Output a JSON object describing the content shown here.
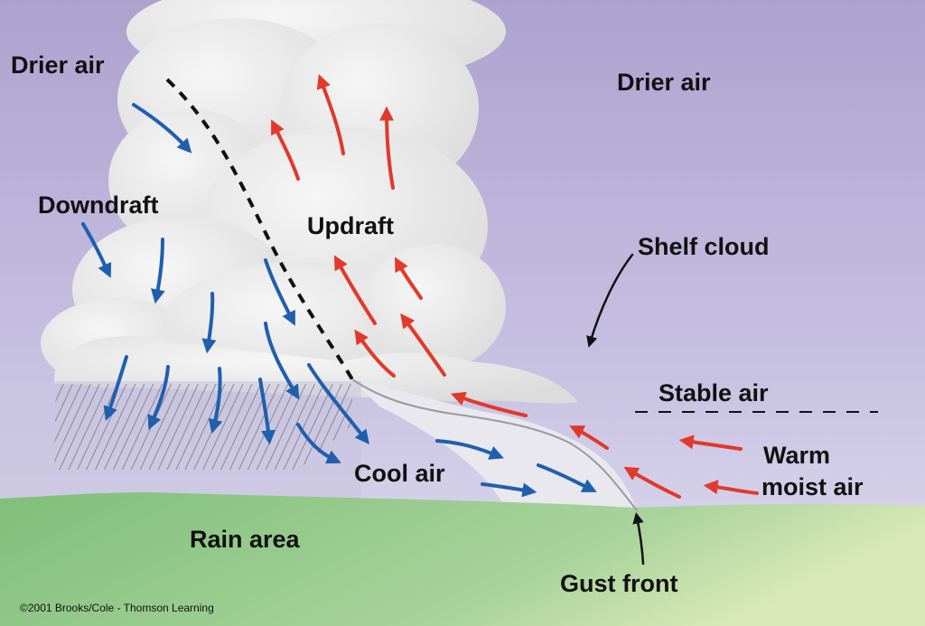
{
  "labels": {
    "drier_air_left": "Drier air",
    "drier_air_right": "Drier air",
    "downdraft": "Downdraft",
    "updraft": "Updraft",
    "shelf_cloud": "Shelf cloud",
    "stable_air": "Stable air",
    "warm_moist_air_line1": "Warm",
    "warm_moist_air_line2": "moist air",
    "cool_air": "Cool air",
    "rain_area": "Rain area",
    "gust_front": "Gust front"
  },
  "credit": "©2001 Brooks/Cole - Thomson Learning",
  "colors": {
    "sky_top": "#b3a8d3",
    "sky_bottom": "#dcd9ee",
    "cloud": "#eeeeee",
    "ground": "#8fc488",
    "downdraft_arrow": "#1f5fae",
    "updraft_arrow": "#e1392a",
    "gust_front_line": "#111111"
  }
}
